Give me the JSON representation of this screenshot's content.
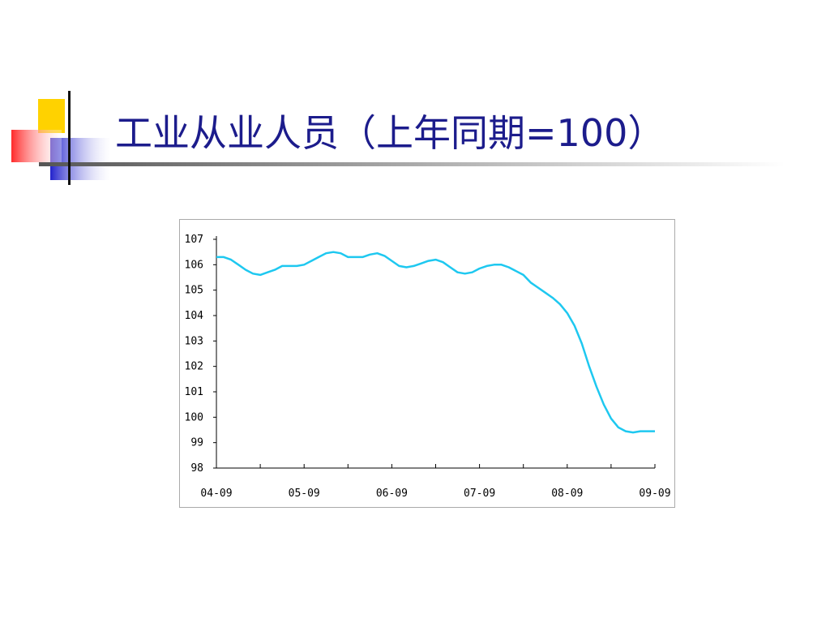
{
  "chart_data": {
    "type": "line",
    "title": "工业从业人员（上年同期=100）",
    "categories": [
      "04-09",
      null,
      null,
      null,
      null,
      null,
      null,
      null,
      null,
      null,
      null,
      null,
      "05-09",
      null,
      null,
      null,
      null,
      null,
      null,
      null,
      null,
      null,
      null,
      null,
      "06-09",
      null,
      null,
      null,
      null,
      null,
      null,
      null,
      null,
      null,
      null,
      null,
      "07-09",
      null,
      null,
      null,
      null,
      null,
      null,
      null,
      null,
      null,
      null,
      null,
      "08-09",
      null,
      null,
      null,
      null,
      null,
      null,
      null,
      null,
      null,
      null,
      null,
      "09-09"
    ],
    "values": [
      106.3,
      106.3,
      106.2,
      106.0,
      105.8,
      105.65,
      105.6,
      105.7,
      105.8,
      105.95,
      105.95,
      105.95,
      106.0,
      106.15,
      106.3,
      106.45,
      106.5,
      106.45,
      106.3,
      106.3,
      106.3,
      106.4,
      106.45,
      106.35,
      106.15,
      105.95,
      105.9,
      105.95,
      106.05,
      106.15,
      106.2,
      106.1,
      105.9,
      105.7,
      105.65,
      105.7,
      105.85,
      105.95,
      106.0,
      106.0,
      105.9,
      105.75,
      105.6,
      105.3,
      105.1,
      104.9,
      104.7,
      104.45,
      104.1,
      103.6,
      102.9,
      102.0,
      101.2,
      100.5,
      99.95,
      99.6,
      99.45,
      99.4,
      99.45,
      99.45,
      99.45
    ],
    "color": "#1ec8f0",
    "ylim": [
      98,
      107
    ],
    "yticks": [
      98,
      99,
      100,
      101,
      102,
      103,
      104,
      105,
      106,
      107
    ]
  }
}
